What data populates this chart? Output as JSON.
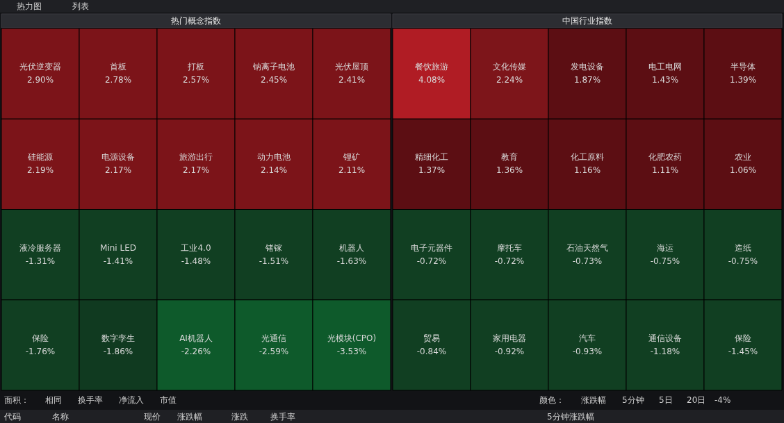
{
  "chart_data": [
    {
      "type": "other",
      "title": "热门概念指数",
      "categories": [
        "光伏逆变器",
        "首板",
        "打板",
        "钠离子电池",
        "光伏屋顶",
        "硅能源",
        "电源设备",
        "旅游出行",
        "动力电池",
        "锂矿",
        "液冷服务器",
        "Mini LED",
        "工业4.0",
        "锗镓",
        "机器人",
        "保险",
        "数字孪生",
        "AI机器人",
        "光通信",
        "光模块(CPO)"
      ],
      "values": [
        2.9,
        2.78,
        2.57,
        2.45,
        2.41,
        2.19,
        2.17,
        2.17,
        2.14,
        2.11,
        -1.31,
        -1.41,
        -1.48,
        -1.51,
        -1.63,
        -1.76,
        -1.86,
        -2.26,
        -2.59,
        -3.53
      ],
      "value_labels": [
        "2.90%",
        "2.78%",
        "2.57%",
        "2.45%",
        "2.41%",
        "2.19%",
        "2.17%",
        "2.17%",
        "2.14%",
        "2.11%",
        "-1.31%",
        "-1.41%",
        "-1.48%",
        "-1.51%",
        "-1.63%",
        "-1.76%",
        "-1.86%",
        "-2.26%",
        "-2.59%",
        "-3.53%"
      ],
      "colors": [
        "#7c1419",
        "#7c1419",
        "#7c1419",
        "#7c1419",
        "#7c1419",
        "#7c1419",
        "#7c1419",
        "#7c1419",
        "#7c1419",
        "#7c1419",
        "#113f22",
        "#113f22",
        "#113f22",
        "#113f22",
        "#113f22",
        "#113f22",
        "#103a20",
        "#0e5a2b",
        "#0e5a2b",
        "#0e5a2b"
      ],
      "annotations": [
        "热力图",
        "列表",
        "面积：",
        "相同",
        "换手率",
        "净流入",
        "市值",
        "代码",
        "名称",
        "现价",
        "涨跌幅",
        "涨跌",
        "换手率"
      ]
    },
    {
      "type": "other",
      "title": "中国行业指数",
      "categories": [
        "餐饮旅游",
        "文化传媒",
        "发电设备",
        "电工电网",
        "半导体",
        "精细化工",
        "教育",
        "化工原料",
        "化肥农药",
        "农业",
        "电子元器件",
        "摩托车",
        "石油天然气",
        "海运",
        "造纸",
        "贸易",
        "家用电器",
        "汽车",
        "通信设备",
        "保险"
      ],
      "values": [
        4.08,
        2.24,
        1.87,
        1.43,
        1.39,
        1.37,
        1.36,
        1.16,
        1.11,
        1.06,
        -0.72,
        -0.72,
        -0.73,
        -0.75,
        -0.75,
        -0.84,
        -0.92,
        -0.93,
        -1.18,
        -1.45
      ],
      "value_labels": [
        "4.08%",
        "2.24%",
        "1.87%",
        "1.43%",
        "1.39%",
        "1.37%",
        "1.36%",
        "1.16%",
        "1.11%",
        "1.06%",
        "-0.72%",
        "-0.72%",
        "-0.73%",
        "-0.75%",
        "-0.75%",
        "-0.84%",
        "-0.92%",
        "-0.93%",
        "-1.18%",
        "-1.45%"
      ],
      "colors": [
        "#b01c24",
        "#7d151a",
        "#5c0e13",
        "#5c0e13",
        "#5c0e13",
        "#5c0e13",
        "#5c0e13",
        "#5c0e13",
        "#5c0e13",
        "#5c0e13",
        "#113f22",
        "#113f22",
        "#113f22",
        "#113f22",
        "#113f22",
        "#113f22",
        "#113f22",
        "#113f22",
        "#113f22",
        "#113f22"
      ],
      "annotations": [
        "颜色：",
        "涨跌幅",
        "5分钟",
        "5日",
        "20日",
        "-4%",
        "5分钟涨跌幅"
      ]
    }
  ]
}
